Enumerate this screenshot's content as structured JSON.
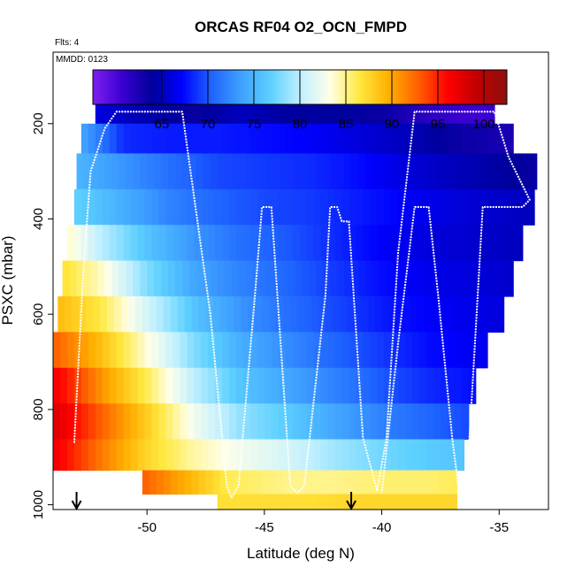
{
  "chart_data": {
    "type": "heatmap",
    "title": "ORCAS RF04 O2_OCN_FMPD",
    "flights_note": "Flts: 4",
    "date_note": "MMDD: 0123",
    "xlabel": "Latitude (deg N)",
    "ylabel": "PSXC (mbar)",
    "xlim": [
      -54,
      -32.9
    ],
    "ylim": [
      1010,
      50
    ],
    "x_ticks": [
      -50,
      -45,
      -40,
      -35
    ],
    "x_tick_labels": [
      "-50",
      "-45",
      "-40",
      "-35"
    ],
    "y_ticks": [
      200,
      400,
      600,
      800,
      1000
    ],
    "y_tick_labels": [
      "200",
      "400",
      "600",
      "800",
      "1000"
    ],
    "colorbar": {
      "range": [
        57.5,
        102.5
      ],
      "ticks": [
        65,
        70,
        75,
        80,
        85,
        90,
        95,
        100
      ],
      "tick_labels": [
        "65",
        "70",
        "75",
        "80",
        "85",
        "90",
        "95",
        "100"
      ],
      "colors": [
        "#7e1fef",
        "#3a00d0",
        "#00009c",
        "#0000ff",
        "#1e63ff",
        "#3ea0ff",
        "#5cd0ff",
        "#bfefff",
        "#ffffe8",
        "#ffe940",
        "#ffb000",
        "#ff6000",
        "#ff0000",
        "#c00000",
        "#8e1010"
      ]
    },
    "layers": [
      {
        "p": 175,
        "lat_min": -52.2,
        "lat_max": -35.2,
        "values": [
          [
            -52,
            66
          ],
          [
            -50,
            64.5
          ],
          [
            -48,
            63.5
          ],
          [
            -46,
            65
          ],
          [
            -44,
            64
          ],
          [
            -42,
            64
          ],
          [
            -40,
            63.5
          ],
          [
            -38,
            61.5
          ],
          [
            -36,
            60.5
          ],
          [
            -35.2,
            61
          ]
        ]
      },
      {
        "p": 225,
        "lat_min": -52.8,
        "lat_max": -34.4,
        "values": [
          [
            -52.8,
            74
          ],
          [
            -51,
            68.5
          ],
          [
            -49,
            68
          ],
          [
            -47,
            68
          ],
          [
            -45,
            67.5
          ],
          [
            -43,
            67
          ],
          [
            -41,
            66
          ],
          [
            -39,
            65
          ],
          [
            -37,
            63.5
          ],
          [
            -34.4,
            62.5
          ]
        ]
      },
      {
        "p": 300,
        "lat_min": -53,
        "lat_max": -33.4,
        "values": [
          [
            -53,
            75
          ],
          [
            -51,
            73
          ],
          [
            -49,
            71
          ],
          [
            -47,
            69.5
          ],
          [
            -45,
            69
          ],
          [
            -43,
            68.5
          ],
          [
            -41,
            67.5
          ],
          [
            -39,
            66
          ],
          [
            -37,
            65
          ],
          [
            -33.4,
            63.5
          ]
        ]
      },
      {
        "p": 375,
        "lat_min": -53.1,
        "lat_max": -33.5,
        "values": [
          [
            -53.1,
            77
          ],
          [
            -51,
            74.5
          ],
          [
            -49,
            72
          ],
          [
            -47,
            70.5
          ],
          [
            -45,
            69.5
          ],
          [
            -43,
            69
          ],
          [
            -41,
            68
          ],
          [
            -39,
            67
          ],
          [
            -37,
            66
          ],
          [
            -33.5,
            65
          ]
        ]
      },
      {
        "p": 450,
        "lat_min": -53.4,
        "lat_max": -34,
        "values": [
          [
            -53.4,
            84
          ],
          [
            -52,
            80
          ],
          [
            -50,
            76
          ],
          [
            -48,
            73
          ],
          [
            -46,
            71
          ],
          [
            -44,
            70
          ],
          [
            -42,
            68.5
          ],
          [
            -40,
            67
          ],
          [
            -38,
            66
          ],
          [
            -34,
            65
          ]
        ]
      },
      {
        "p": 525,
        "lat_min": -53.6,
        "lat_max": -34.4,
        "values": [
          [
            -53.6,
            87
          ],
          [
            -52,
            84
          ],
          [
            -50,
            78
          ],
          [
            -48,
            74
          ],
          [
            -46,
            72
          ],
          [
            -44,
            70.5
          ],
          [
            -42,
            69
          ],
          [
            -40,
            67.5
          ],
          [
            -38,
            66.5
          ],
          [
            -34.4,
            65.5
          ]
        ]
      },
      {
        "p": 600,
        "lat_min": -53.8,
        "lat_max": -34.8,
        "values": [
          [
            -53.8,
            89
          ],
          [
            -52,
            86.5
          ],
          [
            -50,
            81
          ],
          [
            -48,
            76
          ],
          [
            -46,
            73
          ],
          [
            -44,
            71
          ],
          [
            -42,
            69.5
          ],
          [
            -40,
            68
          ],
          [
            -38,
            67
          ],
          [
            -34.8,
            66
          ]
        ]
      },
      {
        "p": 675,
        "lat_min": -54,
        "lat_max": -35.5,
        "values": [
          [
            -54,
            93
          ],
          [
            -52,
            89
          ],
          [
            -50,
            83.5
          ],
          [
            -48,
            78
          ],
          [
            -46,
            74.5
          ],
          [
            -44,
            72.5
          ],
          [
            -42,
            70.5
          ],
          [
            -40,
            69
          ],
          [
            -38,
            67.5
          ],
          [
            -35.5,
            66.5
          ]
        ]
      },
      {
        "p": 750,
        "lat_min": -54,
        "lat_max": -36,
        "values": [
          [
            -54,
            97
          ],
          [
            -52,
            91
          ],
          [
            -50,
            86
          ],
          [
            -48,
            80
          ],
          [
            -46,
            76
          ],
          [
            -44,
            74
          ],
          [
            -42,
            72
          ],
          [
            -40,
            70
          ],
          [
            -38,
            68.5
          ],
          [
            -36,
            67.5
          ]
        ]
      },
      {
        "p": 825,
        "lat_min": -54,
        "lat_max": -36.3,
        "values": [
          [
            -54,
            98
          ],
          [
            -52,
            93
          ],
          [
            -50,
            88
          ],
          [
            -48,
            82.5
          ],
          [
            -46,
            78.5
          ],
          [
            -44,
            76.5
          ],
          [
            -42,
            74
          ],
          [
            -40,
            72
          ],
          [
            -38,
            70.5
          ],
          [
            -36.3,
            69.5
          ]
        ]
      },
      {
        "p": 900,
        "lat_min": -54,
        "lat_max": -36.5,
        "values": [
          [
            -54,
            97
          ],
          [
            -52,
            92
          ],
          [
            -50,
            87.5
          ],
          [
            -48,
            84.5
          ],
          [
            -46,
            82.5
          ],
          [
            -44,
            81
          ],
          [
            -42,
            79
          ],
          [
            -40,
            77.5
          ],
          [
            -38,
            76.5
          ],
          [
            -36.5,
            76
          ]
        ]
      },
      {
        "p": 955,
        "lat_min": -50.2,
        "lat_max": -36.8,
        "values": [
          [
            -50.2,
            93
          ],
          [
            -48,
            89
          ],
          [
            -46.5,
            86
          ],
          [
            -44,
            85
          ],
          [
            -42,
            85
          ],
          [
            -40,
            85.5
          ],
          [
            -38,
            85.5
          ],
          [
            -36.8,
            86
          ]
        ]
      },
      {
        "p": 1000,
        "lat_min": -47,
        "lat_max": -36.8,
        "values": [
          [
            -47,
            87
          ],
          [
            -45,
            87
          ],
          [
            -43,
            87
          ],
          [
            -41,
            87.5
          ],
          [
            -39,
            87.5
          ],
          [
            -36.8,
            87.5
          ]
        ]
      }
    ],
    "flight_track": [
      [
        -53.1,
        870
      ],
      [
        -52.7,
        500
      ],
      [
        -52.4,
        300
      ],
      [
        -51.8,
        210
      ],
      [
        -51.3,
        175
      ],
      [
        -48.5,
        175
      ],
      [
        -47.3,
        600
      ],
      [
        -46.6,
        960
      ],
      [
        -46.4,
        985
      ],
      [
        -46.1,
        960
      ],
      [
        -45.4,
        560
      ],
      [
        -45.1,
        375
      ],
      [
        -44.7,
        375
      ],
      [
        -43.9,
        960
      ],
      [
        -43.6,
        975
      ],
      [
        -43.3,
        960
      ],
      [
        -42.4,
        560
      ],
      [
        -42.2,
        375
      ],
      [
        -41.9,
        375
      ],
      [
        -41.7,
        405
      ],
      [
        -41.4,
        405
      ],
      [
        -40.8,
        860
      ],
      [
        -40.2,
        970
      ],
      [
        -39.8,
        860
      ],
      [
        -39.3,
        470
      ],
      [
        -38.6,
        175
      ],
      [
        -35.2,
        175
      ],
      [
        -34.6,
        270
      ],
      [
        -33.7,
        360
      ],
      [
        -34.0,
        375
      ],
      [
        -35.1,
        375
      ],
      [
        -35.7,
        375
      ],
      [
        -36.1,
        720
      ],
      [
        -36.4,
        970
      ],
      [
        -36.7,
        975
      ],
      [
        -37.0,
        860
      ],
      [
        -37.6,
        560
      ],
      [
        -38.0,
        375
      ],
      [
        -38.6,
        375
      ],
      [
        -39.3,
        660
      ],
      [
        -40.0,
        975
      ]
    ],
    "markers": [
      {
        "lat": -53.0,
        "label": "down-arrow"
      },
      {
        "lat": -41.3,
        "label": "down-arrow"
      }
    ]
  }
}
